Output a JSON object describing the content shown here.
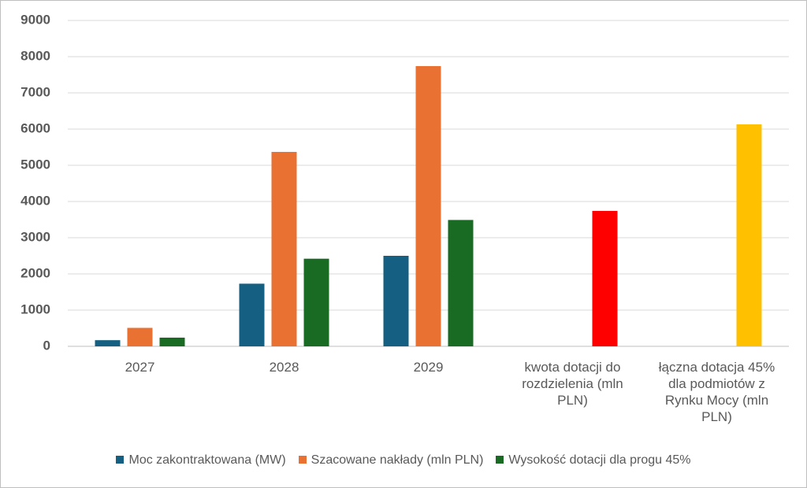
{
  "chart_data": {
    "type": "bar",
    "categories": [
      "2027",
      "2028",
      "2029",
      "kwota dotacji do rozdzielenia (mln PLN)",
      "łączna dotacja 45% dla podmiotów z Rynku Mocy (mln PLN)"
    ],
    "series": [
      {
        "name": "Moc zakontraktowana (MW)",
        "color": "#156082",
        "values": [
          170,
          1730,
          2500,
          null,
          null
        ]
      },
      {
        "name": "Szacowane nakłady (mln  PLN)",
        "color": "#e97132",
        "values": [
          510,
          5370,
          7740,
          null,
          null
        ]
      },
      {
        "name": "Wysokość dotacji dla progu 45%",
        "color": "#196b24",
        "colors": [
          "#196b24",
          "#196b24",
          "#196b24",
          "#ff0000",
          "#ffc000"
        ],
        "values": [
          240,
          2420,
          3490,
          3740,
          6130
        ]
      }
    ],
    "ylim": [
      0,
      9000
    ],
    "yticks": [
      0,
      1000,
      2000,
      3000,
      4000,
      5000,
      6000,
      7000,
      8000,
      9000
    ],
    "grid": true,
    "legend": "bottom"
  }
}
